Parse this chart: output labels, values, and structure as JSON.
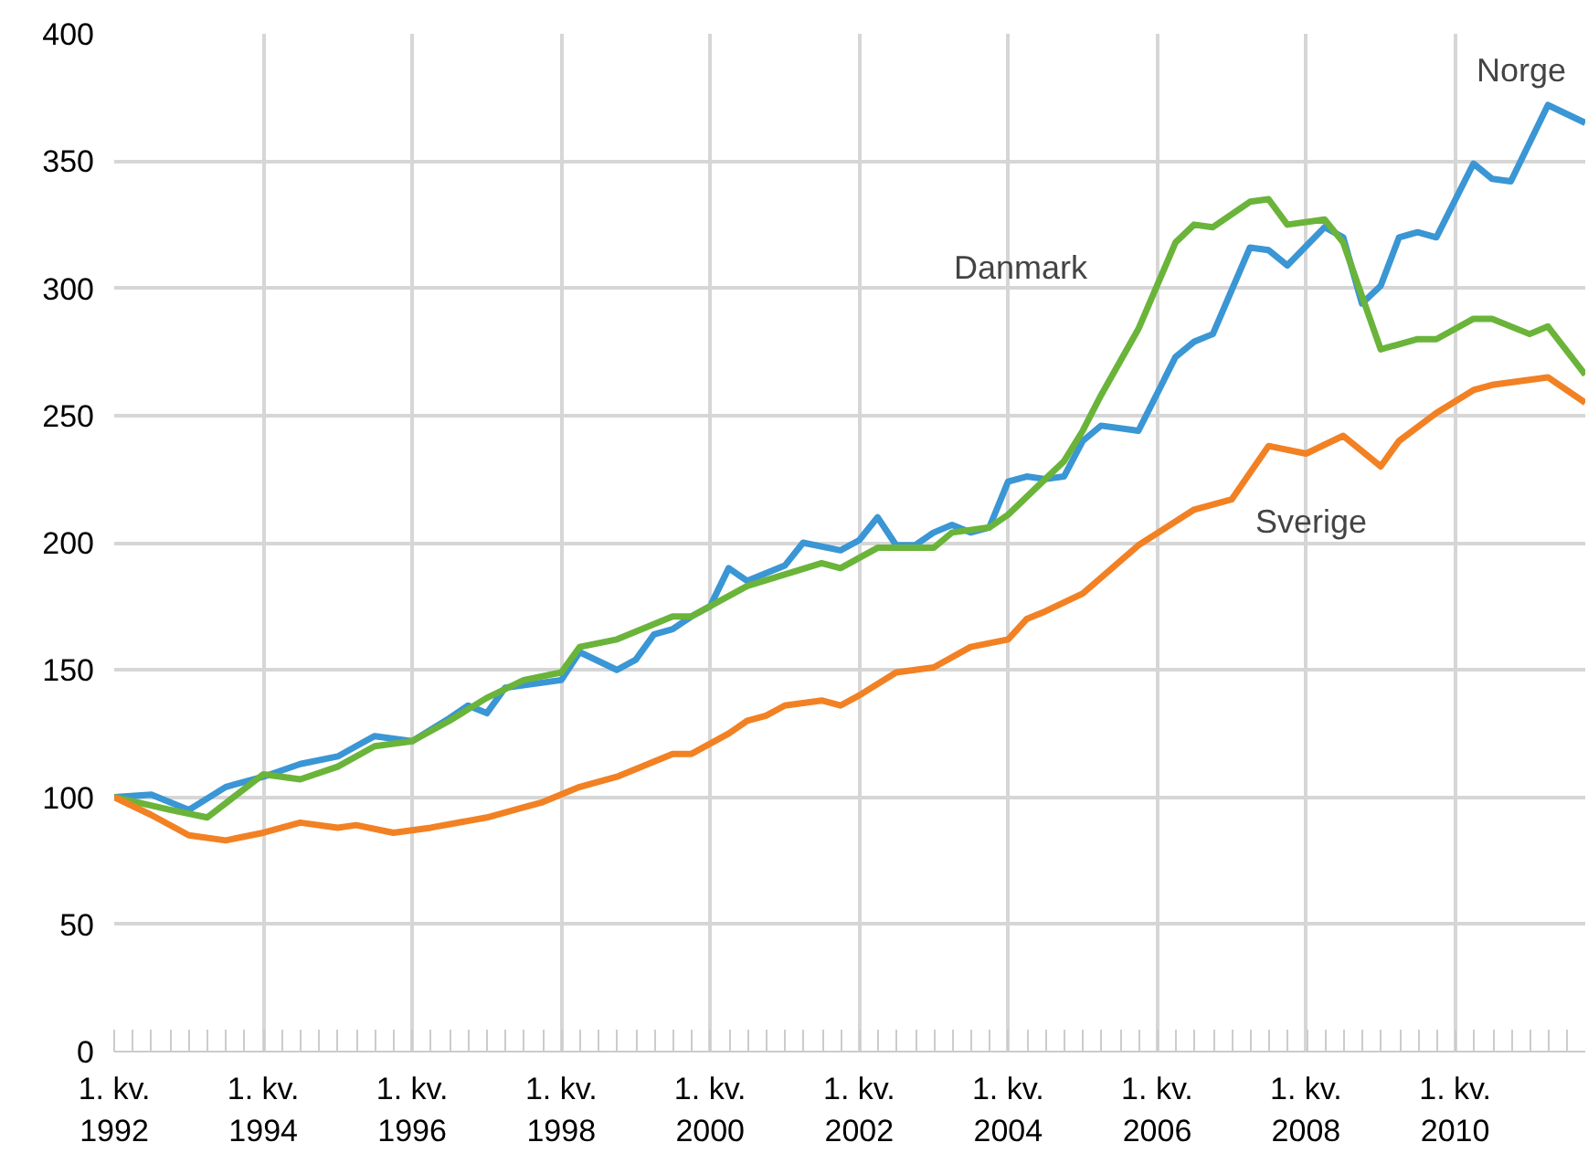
{
  "chart_data": {
    "type": "line",
    "xlim": [
      "1992-01",
      "2011-10"
    ],
    "ylim": [
      0,
      400
    ],
    "xticks": [
      {
        "value": "1992-01",
        "label": "1. kv.\n1992"
      },
      {
        "value": "1994-01",
        "label": "1. kv.\n1994"
      },
      {
        "value": "1996-01",
        "label": "1. kv.\n1996"
      },
      {
        "value": "1998-01",
        "label": "1. kv.\n1998"
      },
      {
        "value": "2000-01",
        "label": "1. kv.\n2000"
      },
      {
        "value": "2002-01",
        "label": "1. kv.\n2002"
      },
      {
        "value": "2004-01",
        "label": "1. kv.\n2004"
      },
      {
        "value": "2006-01",
        "label": "1. kv.\n2006"
      },
      {
        "value": "2008-01",
        "label": "1. kv.\n2008"
      },
      {
        "value": "2010-01",
        "label": "1. kv.\n2010"
      }
    ],
    "yticks": [
      0,
      50,
      100,
      150,
      200,
      250,
      300,
      350,
      400
    ],
    "grid": true,
    "marker": "none",
    "line_style": "solid",
    "series": [
      {
        "color": "#3a96d4",
        "x": [
          "1992-01",
          "1992-07",
          "1993-01",
          "1993-07",
          "1994-01",
          "1994-07",
          "1995-01",
          "1995-04",
          "1995-07",
          "1996-01",
          "1996-07",
          "1996-10",
          "1997-01",
          "1997-04",
          "1998-01",
          "1998-04",
          "1998-10",
          "1999-01",
          "1999-04",
          "1999-07",
          "1999-10",
          "2000-01",
          "2000-04",
          "2000-07",
          "2001-01",
          "2001-04",
          "2001-10",
          "2002-01",
          "2002-04",
          "2002-07",
          "2002-10",
          "2003-01",
          "2003-04",
          "2003-07",
          "2003-10",
          "2004-01",
          "2004-04",
          "2004-07",
          "2004-10",
          "2005-01",
          "2005-04",
          "2005-10",
          "2006-04",
          "2006-07",
          "2006-10",
          "2007-04",
          "2007-07",
          "2007-10",
          "2008-04",
          "2008-07",
          "2008-10",
          "2009-01",
          "2009-04",
          "2009-07",
          "2009-10",
          "2010-04",
          "2010-07",
          "2010-10",
          "2011-04",
          "2011-10"
        ],
        "values": [
          100,
          101,
          95,
          104,
          108,
          113,
          116,
          120,
          124,
          122,
          131,
          136,
          133,
          143,
          146,
          157,
          150,
          154,
          164,
          166,
          171,
          175,
          190,
          185,
          191,
          200,
          197,
          201,
          210,
          199,
          199,
          204,
          207,
          204,
          206,
          224,
          226,
          225,
          226,
          240,
          246,
          244,
          273,
          279,
          282,
          316,
          315,
          309,
          324,
          320,
          294,
          301,
          320,
          322,
          320,
          349,
          343,
          342,
          372,
          365
        ]
      },
      {
        "color": "#6ab43a",
        "x": [
          "1992-01",
          "1992-10",
          "1993-04",
          "1994-01",
          "1994-07",
          "1995-01",
          "1995-07",
          "1996-01",
          "1996-07",
          "1997-01",
          "1997-07",
          "1998-01",
          "1998-04",
          "1998-10",
          "1999-07",
          "1999-10",
          "2000-07",
          "2001-07",
          "2001-10",
          "2002-04",
          "2003-01",
          "2003-04",
          "2003-10",
          "2004-01",
          "2004-07",
          "2004-10",
          "2005-01",
          "2005-04",
          "2005-10",
          "2006-04",
          "2006-07",
          "2006-10",
          "2007-04",
          "2007-07",
          "2007-10",
          "2008-04",
          "2008-07",
          "2009-01",
          "2009-07",
          "2009-10",
          "2010-04",
          "2010-07",
          "2011-01",
          "2011-04",
          "2011-10"
        ],
        "values": [
          100,
          95,
          92,
          109,
          107,
          112,
          120,
          122,
          130,
          139,
          146,
          149,
          159,
          162,
          171,
          171,
          183,
          192,
          190,
          198,
          198,
          204,
          206,
          211,
          225,
          232,
          244,
          258,
          284,
          318,
          325,
          324,
          334,
          335,
          325,
          327,
          318,
          276,
          280,
          280,
          288,
          288,
          282,
          285,
          266
        ]
      },
      {
        "color": "#f28124",
        "x": [
          "1992-01",
          "1992-07",
          "1993-01",
          "1993-07",
          "1994-01",
          "1994-07",
          "1995-01",
          "1995-04",
          "1995-10",
          "1996-04",
          "1997-01",
          "1997-07",
          "1997-10",
          "1998-04",
          "1998-10",
          "1999-07",
          "1999-10",
          "2000-04",
          "2000-07",
          "2000-10",
          "2001-01",
          "2001-07",
          "2001-10",
          "2002-01",
          "2002-07",
          "2003-01",
          "2003-07",
          "2004-01",
          "2004-04",
          "2004-07",
          "2005-01",
          "2005-10",
          "2006-07",
          "2007-01",
          "2007-07",
          "2008-01",
          "2008-07",
          "2009-01",
          "2009-04",
          "2009-10",
          "2010-04",
          "2010-07",
          "2011-04",
          "2011-10"
        ],
        "values": [
          100,
          93,
          85,
          83,
          86,
          90,
          88,
          89,
          86,
          88,
          92,
          96,
          98,
          104,
          108,
          117,
          117,
          125,
          130,
          132,
          136,
          138,
          136,
          140,
          149,
          151,
          159,
          162,
          170,
          173,
          180,
          199,
          213,
          217,
          238,
          235,
          242,
          230,
          240,
          251,
          260,
          262,
          265,
          255
        ]
      }
    ],
    "annotations": [
      "Norge",
      "Danmark",
      "Sverige"
    ]
  }
}
